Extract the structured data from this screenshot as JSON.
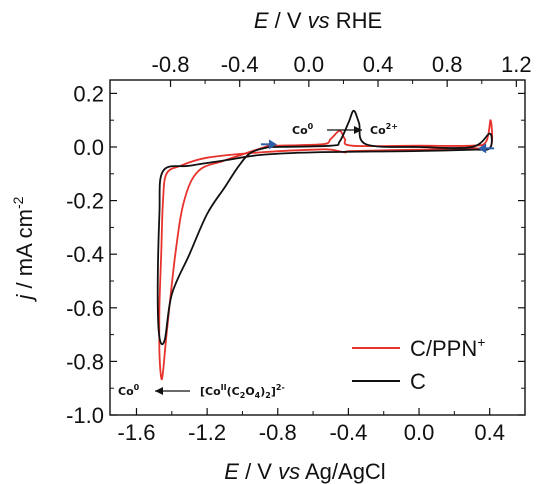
{
  "chart_data": {
    "type": "line",
    "xlabel": {
      "main": "E",
      "rest": " / V ",
      "em": "vs",
      "unit": " Ag/AgCl"
    },
    "ylabel": {
      "main": "j",
      "rest": " / mA cm",
      "sup": "-2"
    },
    "x2label": {
      "main": "E",
      "rest": " / V ",
      "em": "vs",
      "unit": " RHE"
    },
    "xlim": [
      -1.75,
      0.6
    ],
    "ylim": [
      -1.0,
      0.25
    ],
    "x2lim": [
      -1.15,
      1.25
    ],
    "xticks": [
      "-1.6",
      "-1.2",
      "-0.8",
      "-0.4",
      "0.0",
      "0.4"
    ],
    "yticks": [
      "-1.0",
      "-0.8",
      "-0.6",
      "-0.4",
      "-0.2",
      "0.0",
      "0.2"
    ],
    "x2ticks": [
      "-0.8",
      "-0.4",
      "0.0",
      "0.4",
      "0.8",
      "1.2"
    ],
    "legend_position": "bottom-right",
    "series": [
      {
        "name": "C/PPN",
        "name_sup": "+",
        "color": "#e8322c",
        "points": [
          [
            -0.85,
            0.005
          ],
          [
            -0.55,
            0.01
          ],
          [
            -0.5,
            0.03
          ],
          [
            -0.45,
            0.06
          ],
          [
            -0.42,
            0.03
          ],
          [
            -0.38,
            0.005
          ],
          [
            0.0,
            0.005
          ],
          [
            0.3,
            0.005
          ],
          [
            0.38,
            0.02
          ],
          [
            0.405,
            0.1
          ],
          [
            0.405,
            0.0
          ],
          [
            0.3,
            -0.005
          ],
          [
            0.0,
            -0.01
          ],
          [
            -0.38,
            -0.015
          ],
          [
            -0.42,
            -0.02
          ],
          [
            -0.5,
            -0.01
          ],
          [
            -0.6,
            -0.01
          ],
          [
            -0.9,
            -0.02
          ],
          [
            -1.2,
            -0.04
          ],
          [
            -1.35,
            -0.07
          ],
          [
            -1.43,
            -0.1
          ],
          [
            -1.45,
            -0.2
          ],
          [
            -1.46,
            -0.4
          ],
          [
            -1.47,
            -0.6
          ],
          [
            -1.47,
            -0.76
          ],
          [
            -1.46,
            -0.86
          ],
          [
            -1.45,
            -0.84
          ],
          [
            -1.43,
            -0.7
          ],
          [
            -1.38,
            -0.4
          ],
          [
            -1.33,
            -0.2
          ],
          [
            -1.25,
            -0.09
          ],
          [
            -1.1,
            -0.05
          ],
          [
            -0.85,
            0.005
          ]
        ]
      },
      {
        "name": "C",
        "color": "#111111",
        "points": [
          [
            -0.85,
            0.0
          ],
          [
            -0.5,
            0.005
          ],
          [
            -0.45,
            0.02
          ],
          [
            -0.4,
            0.09
          ],
          [
            -0.37,
            0.135
          ],
          [
            -0.34,
            0.09
          ],
          [
            -0.3,
            0.01
          ],
          [
            0.0,
            0.0
          ],
          [
            0.3,
            0.0
          ],
          [
            0.4,
            0.05
          ],
          [
            0.4,
            -0.005
          ],
          [
            0.3,
            -0.01
          ],
          [
            0.0,
            -0.015
          ],
          [
            -0.6,
            -0.02
          ],
          [
            -0.9,
            -0.03
          ],
          [
            -1.1,
            -0.05
          ],
          [
            -1.3,
            -0.07
          ],
          [
            -1.45,
            -0.09
          ],
          [
            -1.47,
            -0.25
          ],
          [
            -1.48,
            -0.55
          ],
          [
            -1.47,
            -0.71
          ],
          [
            -1.44,
            -0.72
          ],
          [
            -1.4,
            -0.55
          ],
          [
            -1.3,
            -0.4
          ],
          [
            -1.2,
            -0.25
          ],
          [
            -1.1,
            -0.15
          ],
          [
            -1.02,
            -0.07
          ],
          [
            -0.95,
            -0.02
          ],
          [
            -0.85,
            0.0
          ]
        ]
      }
    ],
    "annotations": {
      "oxidation": {
        "from": "Co",
        "from_sup": "0",
        "to": "Co",
        "to_sup": "2+"
      },
      "reduction": {
        "to": "Co",
        "to_sup": "0",
        "complex_main": "[Co",
        "complex_ox": "II",
        "complex_mid": "(C",
        "complex_sub1": "2",
        "complex_o": "O",
        "complex_sub2": "4",
        "complex_close": ")",
        "complex_sub3": "2",
        "complex_end": "]",
        "complex_charge": "2-"
      }
    },
    "scan_arrows": [
      {
        "x": -0.85,
        "y": 0.01,
        "direction": "right"
      },
      {
        "x": 0.38,
        "y": -0.005,
        "direction": "left"
      }
    ],
    "arrow_color": "#2f5ea8"
  }
}
